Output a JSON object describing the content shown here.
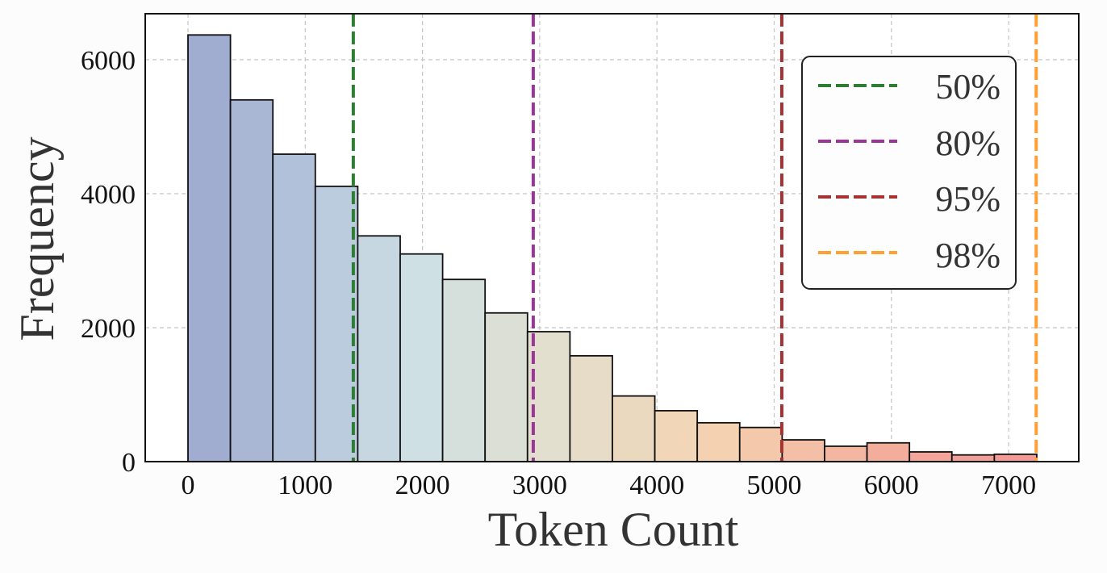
{
  "chart_data": {
    "type": "bar",
    "subtype": "histogram",
    "title": "",
    "xlabel": "Token Count",
    "ylabel": "Frequency",
    "xlim": [
      -370,
      7580
    ],
    "ylim": [
      0,
      6700
    ],
    "grid": true,
    "legend_position": "upper right",
    "x_ticks": [
      0,
      1000,
      2000,
      3000,
      4000,
      5000,
      6000,
      7000
    ],
    "y_ticks": [
      0,
      2000,
      4000,
      6000
    ],
    "bin_width": 362,
    "bin_edges": [
      0,
      362,
      724,
      1086,
      1448,
      1810,
      2172,
      2534,
      2896,
      3258,
      3620,
      3982,
      4344,
      4706,
      5068,
      5430,
      5792,
      6154,
      6516,
      6878,
      7240
    ],
    "values": [
      6370,
      5400,
      4590,
      4110,
      3370,
      3100,
      2720,
      2220,
      1940,
      1580,
      980,
      760,
      580,
      510,
      325,
      230,
      280,
      145,
      100,
      110
    ],
    "bar_colors": [
      "#a0acd0",
      "#a9b7d5",
      "#b2c1da",
      "#bcccdf",
      "#c6d7e1",
      "#cfe0e5",
      "#d5dfdc",
      "#dcdfd6",
      "#e2dfce",
      "#e6dcc8",
      "#ebd9bf",
      "#f1d6b8",
      "#f3d1b1",
      "#f3c8ab",
      "#f3bfa6",
      "#f3b6a0",
      "#f3ae9b",
      "#f3a59a",
      "#f39f99",
      "#f39a96"
    ],
    "percentiles": [
      {
        "label": "50%",
        "value": 1410,
        "color": "#2e7d32"
      },
      {
        "label": "80%",
        "value": 2945,
        "color": "#9b3597"
      },
      {
        "label": "95%",
        "value": 5065,
        "color": "#a83232"
      },
      {
        "label": "98%",
        "value": 7235,
        "color": "#ffa033"
      }
    ]
  },
  "axis": {
    "xlabel": "Token Count",
    "ylabel": "Frequency",
    "x_tick_labels": [
      "0",
      "1000",
      "2000",
      "3000",
      "4000",
      "5000",
      "6000",
      "7000"
    ],
    "y_tick_labels": [
      "0",
      "2000",
      "4000",
      "6000"
    ]
  },
  "legend": {
    "items": [
      {
        "label": "50%",
        "color": "#2e7d32"
      },
      {
        "label": "80%",
        "color": "#9b3597"
      },
      {
        "label": "95%",
        "color": "#a83232"
      },
      {
        "label": "98%",
        "color": "#ffa033"
      }
    ]
  }
}
